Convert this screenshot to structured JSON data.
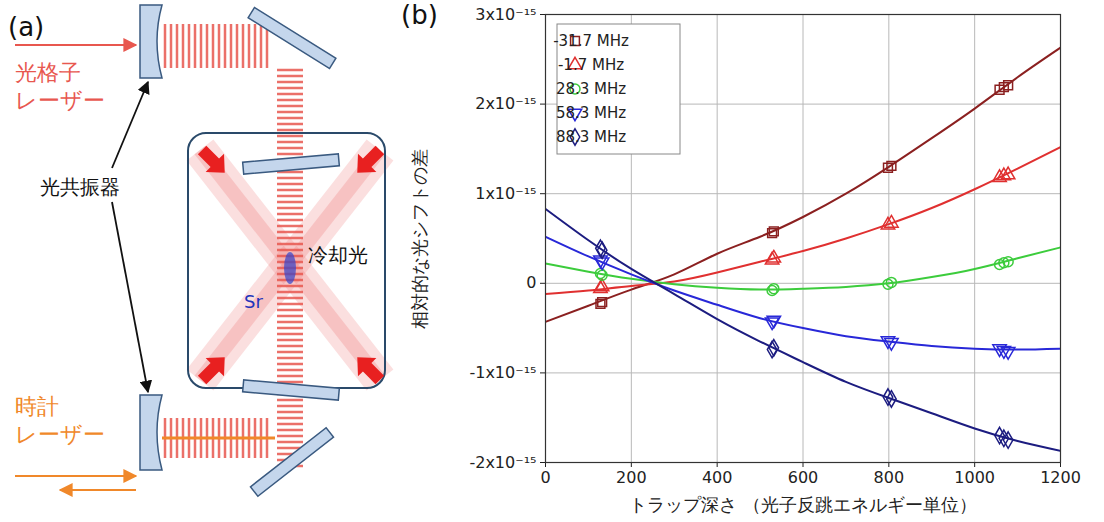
{
  "diagram": {
    "panel_label": "(a)",
    "lattice_laser": {
      "lines": [
        "光格子",
        "レーザー"
      ],
      "color": "#e8574f"
    },
    "cavity": "光共振器",
    "cooling_light": "冷却光",
    "atom": "Sr",
    "clock_laser": {
      "lines": [
        "時計",
        "レーザー"
      ],
      "color": "#f0882a"
    }
  },
  "chart_data": {
    "type": "scatter",
    "panel_label": "(b)",
    "x_label": "トラップ深さ （光子反跳エネルギー単位）",
    "y_label": "相対的な光シフトの差",
    "xlim": [
      0,
      1200
    ],
    "xticks": [
      0,
      200,
      400,
      600,
      800,
      1000,
      1200
    ],
    "ylim": [
      -2e-15,
      3e-15
    ],
    "yticks": [
      {
        "value": -2e-15,
        "label": "-2x10⁻¹⁵"
      },
      {
        "value": -1e-15,
        "label": "-1x10⁻¹⁵"
      },
      0,
      {
        "value": 1e-15,
        "label": "1x10⁻¹⁵"
      },
      {
        "value": 2e-15,
        "label": "2x10⁻¹⁵"
      },
      {
        "value": 3e-15,
        "label": "3x10⁻¹⁵"
      }
    ],
    "grid": true,
    "legend": "top-left",
    "x": [
      128,
      132,
      528,
      532,
      798,
      806,
      1058,
      1068,
      1078
    ],
    "fit_x": [
      0,
      100,
      200,
      300,
      400,
      500,
      600,
      700,
      800,
      900,
      1000,
      1100,
      1200
    ],
    "series": [
      {
        "name": "-31.7 MHz",
        "color": "#8b2020",
        "marker": "square",
        "values": [
          -2.3e-16,
          -2.1e-16,
          5.6e-16,
          5.8e-16,
          1.29e-15,
          1.31e-15,
          2.16e-15,
          2.19e-15,
          2.21e-15
        ],
        "fit_values": [
          -4.3e-16,
          -2.5e-16,
          -7e-17,
          1e-16,
          3.3e-16,
          5.2e-16,
          7.4e-16,
          1e-15,
          1.3e-15,
          1.62e-15,
          1.95e-15,
          2.3e-15,
          2.63e-15
        ]
      },
      {
        "name": "-1.7 MHz",
        "color": "#e03030",
        "marker": "triangle",
        "values": [
          -6e-17,
          -4e-17,
          2.6e-16,
          2.8e-16,
          6.5e-16,
          6.7e-16,
          1.18e-15,
          1.2e-15,
          1.21e-15
        ],
        "fit_values": [
          -1.2e-16,
          -8e-17,
          -3e-17,
          2e-17,
          1.2e-16,
          2.4e-16,
          3.6e-16,
          5e-16,
          6.6e-16,
          8.4e-16,
          1.05e-15,
          1.28e-15,
          1.52e-15
        ]
      },
      {
        "name": "28.3 MHz",
        "color": "#3ccc3c",
        "marker": "circle",
        "values": [
          1.1e-16,
          9e-17,
          -8e-17,
          -6e-17,
          -1e-17,
          1e-17,
          2.1e-16,
          2.3e-16,
          2.4e-16
        ],
        "fit_values": [
          2.2e-16,
          1.3e-16,
          5e-17,
          -1e-17,
          -5e-17,
          -7e-17,
          -6e-17,
          -4e-17,
          0,
          7e-17,
          1.6e-16,
          2.8e-16,
          4e-16
        ]
      },
      {
        "name": "58.3 MHz",
        "color": "#2828d8",
        "marker": "triangle-down",
        "values": [
          2.6e-16,
          2.4e-16,
          -4.3e-16,
          -4.1e-16,
          -6.4e-16,
          -6.6e-16,
          -7.3e-16,
          -7.5e-16,
          -7.6e-16
        ],
        "fit_values": [
          5.2e-16,
          3e-16,
          1e-16,
          -8e-17,
          -2.4e-16,
          -3.9e-16,
          -5e-16,
          -5.9e-16,
          -6.5e-16,
          -7e-16,
          -7.3e-16,
          -7.4e-16,
          -7.3e-16
        ]
      },
      {
        "name": "88.3 MHz",
        "color": "#1c1c80",
        "marker": "diamond",
        "values": [
          3.9e-16,
          3.7e-16,
          -7.4e-16,
          -7.2e-16,
          -1.27e-15,
          -1.29e-15,
          -1.7e-15,
          -1.73e-15,
          -1.75e-15
        ],
        "fit_values": [
          8.3e-16,
          4.8e-16,
          1.6e-16,
          -1.2e-16,
          -4e-16,
          -6.5e-16,
          -8.8e-16,
          -1.1e-15,
          -1.28e-15,
          -1.45e-15,
          -1.62e-15,
          -1.76e-15,
          -1.87e-15
        ]
      }
    ]
  }
}
